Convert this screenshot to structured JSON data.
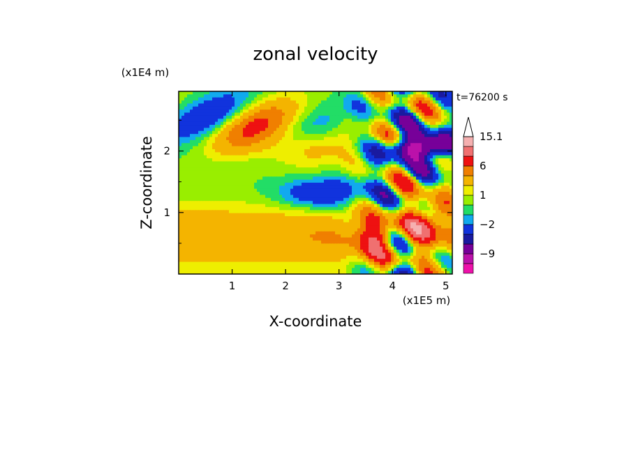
{
  "chart_data": {
    "type": "heatmap",
    "title": "zonal velocity",
    "xlabel": "X-coordinate",
    "ylabel": "Z-coordinate",
    "x_unit": "(x1E5 m)",
    "y_unit": "(x1E4 m)",
    "time_label": "t=76200 s",
    "xlim": [
      0,
      5.12
    ],
    "ylim": [
      0,
      2.97
    ],
    "x_ticks": [
      "1",
      "2",
      "3",
      "4",
      "5"
    ],
    "y_ticks": [
      "1",
      "2"
    ],
    "colorbar": {
      "labels": [
        "15.1",
        "6",
        "1",
        "−2",
        "−9"
      ],
      "levels": [
        -15,
        -12,
        -9,
        -6,
        -4,
        -2,
        -1,
        0,
        1,
        2,
        4,
        6,
        9,
        12,
        15.1
      ],
      "colors": [
        "#ee11aa",
        "#bb11aa",
        "#770099",
        "#1a1aa0",
        "#1133dd",
        "#11aaee",
        "#22dd66",
        "#99ee00",
        "#eeee00",
        "#f4b400",
        "#f07f00",
        "#ee1111",
        "#f07070",
        "#f5b0b0"
      ],
      "extend_max": true
    },
    "grid": false
  }
}
